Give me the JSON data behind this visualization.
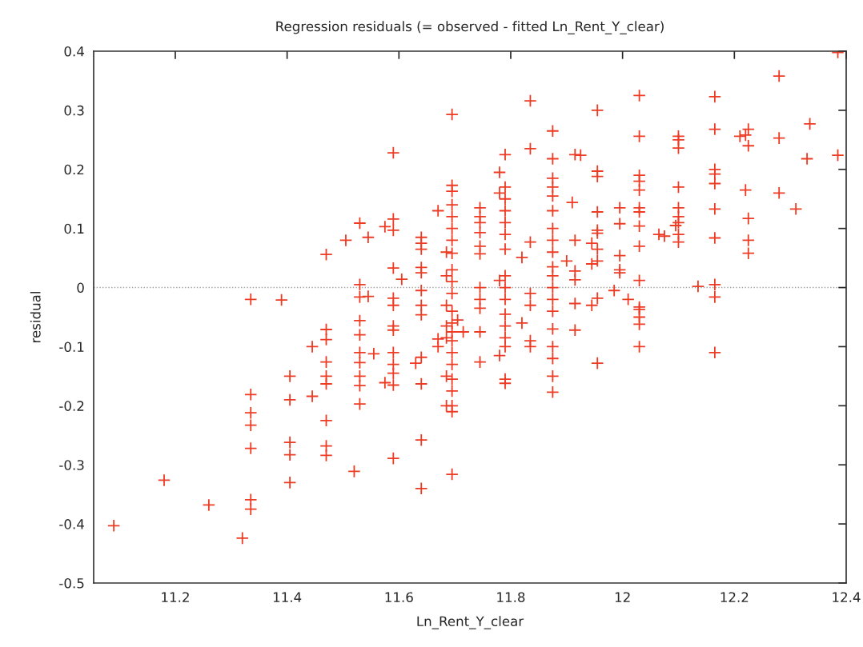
{
  "chart_data": {
    "type": "scatter",
    "title": "Regression residuals (= observed - fitted Ln_Rent_Y_clear)",
    "xlabel": "Ln_Rent_Y_clear",
    "ylabel": "residual",
    "xlim": [
      11.054,
      12.4
    ],
    "ylim": [
      -0.5,
      0.4
    ],
    "xticks": [
      11.2,
      11.4,
      11.6,
      11.8,
      12,
      12.2,
      12.4
    ],
    "yticks": [
      {
        "value": -0.5,
        "label": "-0.5"
      },
      {
        "value": -0.4,
        "label": "-0.4"
      },
      {
        "value": -0.3,
        "label": "-0.3"
      },
      {
        "value": -0.2,
        "label": "-0.2"
      },
      {
        "value": -0.1,
        "label": "-0.1"
      },
      0,
      0.1,
      0.2,
      0.3,
      0.4
    ],
    "ref_lines": [
      {
        "axis": "y",
        "value": 0,
        "color": "#a0a0a0",
        "line_style": "dotted"
      }
    ],
    "marker": "cross",
    "grid": false,
    "legend": false,
    "series": [
      {
        "color": "#ee3b24",
        "x": [
          11.09,
          11.18,
          11.26,
          11.32,
          11.335,
          11.335,
          11.335,
          11.335,
          11.335,
          11.335,
          11.335,
          11.39,
          11.405,
          11.405,
          11.405,
          11.405,
          11.405,
          11.445,
          11.445,
          11.47,
          11.47,
          11.47,
          11.47,
          11.47,
          11.47,
          11.47,
          11.47,
          11.47,
          11.505,
          11.52,
          11.53,
          11.53,
          11.53,
          11.53,
          11.53,
          11.53,
          11.53,
          11.53,
          11.53,
          11.53,
          11.545,
          11.545,
          11.555,
          11.575,
          11.575,
          11.59,
          11.59,
          11.59,
          11.59,
          11.59,
          11.59,
          11.59,
          11.59,
          11.59,
          11.59,
          11.59,
          11.59,
          11.59,
          11.605,
          11.63,
          11.64,
          11.64,
          11.64,
          11.64,
          11.64,
          11.64,
          11.64,
          11.64,
          11.64,
          11.64,
          11.64,
          11.64,
          11.67,
          11.67,
          11.67,
          11.685,
          11.685,
          11.685,
          11.685,
          11.685,
          11.685,
          11.685,
          11.695,
          11.695,
          11.695,
          11.695,
          11.695,
          11.695,
          11.695,
          11.695,
          11.695,
          11.695,
          11.695,
          11.695,
          11.695,
          11.695,
          11.695,
          11.695,
          11.695,
          11.695,
          11.695,
          11.695,
          11.695,
          11.695,
          11.705,
          11.715,
          11.745,
          11.745,
          11.745,
          11.745,
          11.745,
          11.745,
          11.745,
          11.745,
          11.745,
          11.745,
          11.745,
          11.78,
          11.78,
          11.78,
          11.78,
          11.79,
          11.79,
          11.79,
          11.79,
          11.79,
          11.79,
          11.79,
          11.79,
          11.79,
          11.79,
          11.79,
          11.79,
          11.79,
          11.79,
          11.79,
          11.79,
          11.82,
          11.82,
          11.835,
          11.835,
          11.835,
          11.835,
          11.835,
          11.835,
          11.835,
          11.875,
          11.875,
          11.875,
          11.875,
          11.875,
          11.875,
          11.875,
          11.875,
          11.875,
          11.875,
          11.875,
          11.875,
          11.875,
          11.875,
          11.875,
          11.875,
          11.875,
          11.875,
          11.875,
          11.9,
          11.91,
          11.915,
          11.915,
          11.915,
          11.915,
          11.915,
          11.915,
          11.925,
          11.945,
          11.945,
          11.945,
          11.955,
          11.955,
          11.955,
          11.955,
          11.955,
          11.955,
          11.955,
          11.955,
          11.955,
          11.955,
          11.985,
          11.995,
          11.995,
          11.995,
          11.995,
          11.995,
          12.01,
          12.03,
          12.03,
          12.03,
          12.03,
          12.03,
          12.03,
          12.03,
          12.03,
          12.03,
          12.03,
          12.03,
          12.03,
          12.03,
          12.03,
          12.03,
          12.065,
          12.075,
          12.1,
          12.1,
          12.1,
          12.1,
          12.1,
          12.1,
          12.1,
          12.095,
          12.1,
          12.1,
          12.135,
          12.165,
          12.165,
          12.165,
          12.165,
          12.165,
          12.165,
          12.165,
          12.165,
          12.165,
          12.165,
          12.21,
          12.22,
          12.225,
          12.225,
          12.22,
          12.225,
          12.225,
          12.225,
          12.28,
          12.28,
          12.28,
          12.31,
          12.33,
          12.335,
          12.385,
          12.385
        ],
        "values": [
          -0.403,
          -0.326,
          -0.368,
          -0.424,
          -0.02,
          -0.181,
          -0.212,
          -0.233,
          -0.272,
          -0.359,
          -0.375,
          -0.021,
          -0.15,
          -0.19,
          -0.262,
          -0.283,
          -0.33,
          -0.1,
          -0.184,
          0.056,
          -0.071,
          -0.088,
          -0.126,
          -0.15,
          -0.163,
          -0.225,
          -0.268,
          -0.284,
          0.08,
          -0.311,
          0.109,
          0.005,
          -0.016,
          -0.056,
          -0.08,
          -0.11,
          -0.127,
          -0.15,
          -0.166,
          -0.197,
          0.085,
          -0.015,
          -0.112,
          0.103,
          -0.161,
          0.228,
          0.116,
          0.097,
          0.033,
          -0.018,
          -0.03,
          -0.065,
          -0.072,
          -0.11,
          -0.13,
          -0.145,
          -0.165,
          -0.289,
          0.014,
          -0.128,
          0.085,
          0.075,
          0.065,
          0.034,
          0.025,
          -0.005,
          -0.03,
          -0.046,
          -0.118,
          -0.163,
          -0.258,
          -0.34,
          0.13,
          -0.087,
          -0.1,
          0.06,
          0.02,
          -0.03,
          -0.065,
          -0.085,
          -0.15,
          -0.2,
          0.293,
          0.173,
          0.163,
          0.14,
          0.12,
          0.1,
          0.08,
          0.058,
          0.03,
          0.01,
          -0.01,
          -0.04,
          -0.06,
          -0.075,
          -0.09,
          -0.11,
          -0.13,
          -0.155,
          -0.175,
          -0.2,
          -0.21,
          -0.316,
          -0.055,
          -0.075,
          0.135,
          0.12,
          0.11,
          0.093,
          0.07,
          0.057,
          0.0,
          -0.02,
          -0.035,
          -0.075,
          -0.126,
          0.195,
          0.16,
          0.012,
          -0.115,
          0.225,
          0.17,
          0.15,
          0.13,
          0.11,
          0.09,
          0.065,
          0.02,
          0.0,
          -0.02,
          -0.045,
          -0.065,
          -0.085,
          -0.1,
          -0.155,
          -0.162,
          0.051,
          -0.06,
          0.316,
          0.235,
          0.077,
          -0.01,
          -0.03,
          -0.09,
          -0.1,
          0.265,
          0.218,
          0.185,
          0.17,
          0.155,
          0.13,
          0.1,
          0.08,
          0.06,
          0.035,
          0.02,
          0.0,
          -0.02,
          -0.04,
          -0.07,
          -0.1,
          -0.12,
          -0.15,
          -0.177,
          0.045,
          0.144,
          0.225,
          0.08,
          0.028,
          0.013,
          -0.027,
          -0.072,
          0.224,
          0.075,
          0.04,
          -0.03,
          0.3,
          0.197,
          0.188,
          0.128,
          0.097,
          0.092,
          0.065,
          0.045,
          -0.018,
          -0.128,
          -0.005,
          0.135,
          0.108,
          0.054,
          0.03,
          0.025,
          -0.02,
          0.325,
          0.256,
          0.19,
          0.18,
          0.165,
          0.135,
          0.128,
          0.104,
          0.07,
          0.012,
          -0.033,
          -0.037,
          -0.05,
          -0.062,
          -0.1,
          0.09,
          0.087,
          0.256,
          0.25,
          0.236,
          0.17,
          0.135,
          0.12,
          0.11,
          0.105,
          0.09,
          0.077,
          0.002,
          0.323,
          0.268,
          0.2,
          0.192,
          0.176,
          0.133,
          0.084,
          0.005,
          -0.016,
          -0.11,
          0.256,
          0.258,
          0.268,
          0.24,
          0.165,
          0.117,
          0.08,
          0.058,
          0.358,
          0.253,
          0.16,
          0.133,
          0.218,
          0.277,
          0.398,
          0.224
        ]
      }
    ]
  }
}
